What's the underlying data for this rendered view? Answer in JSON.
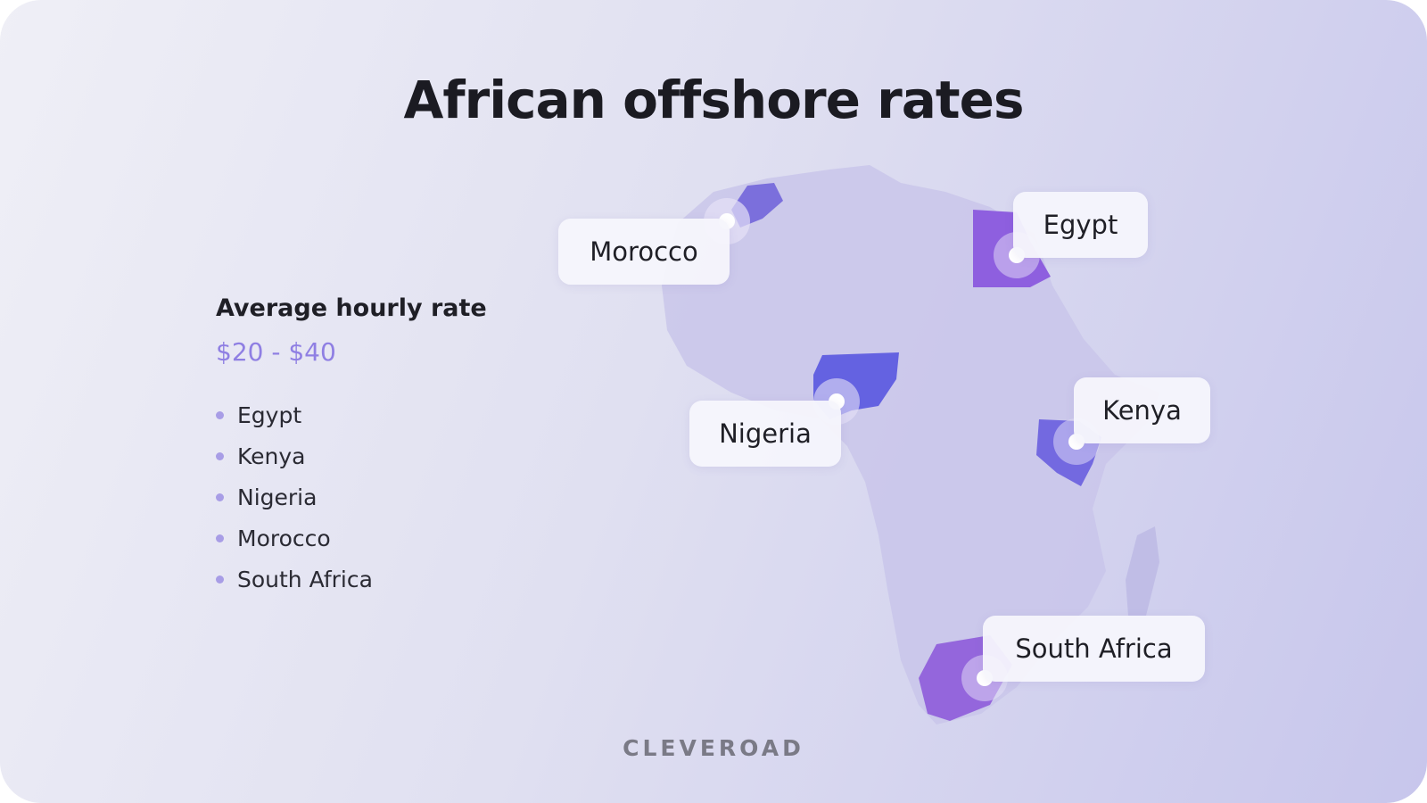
{
  "header": {
    "title": "African offshore rates"
  },
  "rate": {
    "label": "Average hourly rate",
    "range": "$20 - $40",
    "countries": [
      "Egypt",
      "Kenya",
      "Nigeria",
      "Morocco",
      "South Africa"
    ]
  },
  "map": {
    "labels": [
      "Morocco",
      "Egypt",
      "Nigeria",
      "Kenya",
      "South Africa"
    ]
  },
  "footer": {
    "brand": "CLEVEROAD"
  }
}
